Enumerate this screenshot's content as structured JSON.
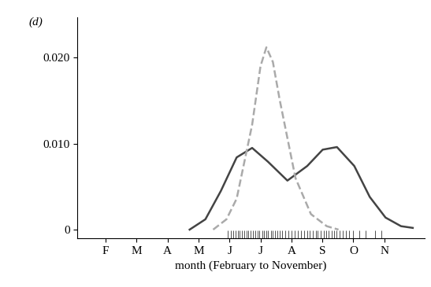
{
  "chart_data": {
    "type": "line",
    "title": "(d)",
    "x_label": "month (February to November)",
    "xlim": [
      1.09,
      12.3
    ],
    "xticks": [
      {
        "value": 2,
        "label": "F"
      },
      {
        "value": 3,
        "label": "M"
      },
      {
        "value": 4,
        "label": "A"
      },
      {
        "value": 5,
        "label": "M"
      },
      {
        "value": 6,
        "label": "J"
      },
      {
        "value": 7,
        "label": "J"
      },
      {
        "value": 8,
        "label": "A"
      },
      {
        "value": 9,
        "label": "S"
      },
      {
        "value": 10,
        "label": "O"
      },
      {
        "value": 11,
        "label": "N"
      }
    ],
    "ylim": [
      -0.001,
      0.0247
    ],
    "yticks": [
      0,
      {
        "value": 0.01,
        "label": "0.010"
      },
      {
        "value": 0.02,
        "label": "0.020"
      }
    ],
    "grid": false,
    "series": [
      {
        "color": "#444444",
        "line_style": "solid",
        "x": [
          4.71,
          5.22,
          5.72,
          6.23,
          6.73,
          7.24,
          7.87,
          8.51,
          9.01,
          9.47,
          10.03,
          10.53,
          11.04,
          11.54,
          11.92
        ],
        "values": [
          0.0,
          0.0012,
          0.0045,
          0.0084,
          0.0095,
          0.0079,
          0.0057,
          0.0074,
          0.0093,
          0.0096,
          0.0074,
          0.0038,
          0.0014,
          0.0004,
          0.0002
        ]
      },
      {
        "color": "#aaaaaa",
        "line_style": "dashed",
        "x": [
          5.47,
          5.9,
          6.23,
          6.73,
          7.0,
          7.19,
          7.4,
          7.62,
          8.13,
          8.63,
          9.14,
          9.52
        ],
        "values": [
          0.0,
          0.0012,
          0.0036,
          0.0122,
          0.019,
          0.0212,
          0.0195,
          0.0151,
          0.006,
          0.0018,
          0.0004,
          0.0
        ]
      }
    ],
    "observations": [
      5.95,
      6.05,
      6.12,
      6.2,
      6.28,
      6.33,
      6.4,
      6.47,
      6.55,
      6.6,
      6.68,
      6.75,
      6.82,
      6.9,
      6.97,
      7.05,
      7.1,
      7.18,
      7.25,
      7.33,
      7.4,
      7.48,
      7.55,
      7.62,
      7.7,
      7.8,
      7.9,
      8.0,
      8.1,
      8.2,
      8.3,
      8.42,
      8.5,
      8.6,
      8.7,
      8.78,
      8.85,
      8.95,
      9.05,
      9.12,
      9.2,
      9.3,
      9.38,
      9.45,
      9.55,
      9.65,
      9.75,
      9.85,
      10.0,
      10.2,
      10.4,
      10.7,
      10.9
    ]
  }
}
